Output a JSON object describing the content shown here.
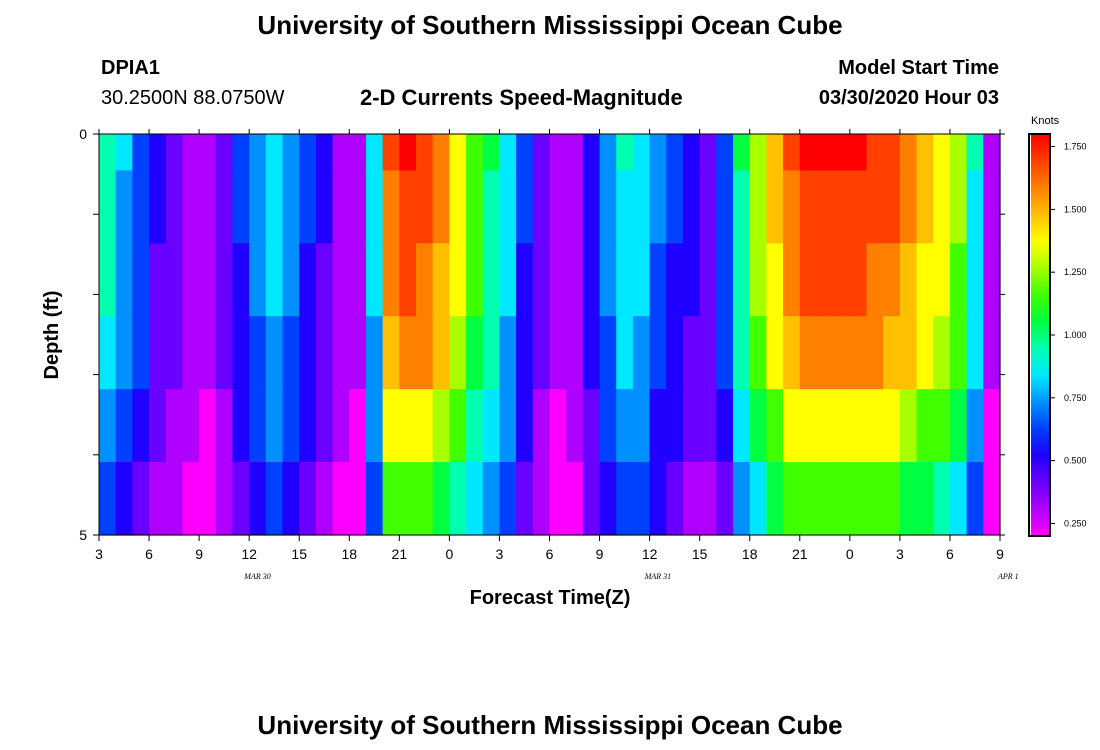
{
  "header": {
    "title": "University of Southern Mississippi Ocean Cube",
    "station_id": "DPIA1",
    "coordinates": "30.2500N 88.0750W",
    "plot_title": "2-D Currents Speed-Magnitude",
    "model_start_label": "Model Start Time",
    "model_start_value": "03/30/2020 Hour 03"
  },
  "footer": {
    "title": "University of Southern Mississippi Ocean Cube"
  },
  "colors": {
    "scale": [
      "#ff00ff",
      "#b000ff",
      "#6a00ff",
      "#2000ff",
      "#0040ff",
      "#0090ff",
      "#00e8ff",
      "#00ffb0",
      "#00ff40",
      "#40ff00",
      "#a8ff00",
      "#ffff00",
      "#ffc000",
      "#ff8000",
      "#ff4000",
      "#ff0000"
    ]
  },
  "chart_data": {
    "type": "heatmap",
    "title": "2-D Currents Speed-Magnitude",
    "xlabel": "Forecast Time(Z)",
    "ylabel": "Depth (ft)",
    "colorbar_label": "Knots",
    "colorbar_range": [
      0.2,
      1.8
    ],
    "colorbar_ticks": [
      "0.250",
      "0.500",
      "0.750",
      "1.000",
      "1.250",
      "1.500",
      "1.750"
    ],
    "ylim": [
      0,
      5
    ],
    "y_tick_labels": [
      "0",
      "5"
    ],
    "x_tick_labels": [
      "3",
      "6",
      "9",
      "12",
      "15",
      "18",
      "21",
      "0",
      "3",
      "6",
      "9",
      "12",
      "15",
      "18",
      "21",
      "0",
      "3",
      "6",
      "9"
    ],
    "day_labels": [
      {
        "text": "MAR 30",
        "hour_index": 9.5
      },
      {
        "text": "MAR 31",
        "hour_index": 33.5
      },
      {
        "text": "APR 1",
        "hour_index": 54.5
      }
    ],
    "hours": 54,
    "depth_layers": 5,
    "surface_speed_knots": [
      0.95,
      0.8,
      0.65,
      0.48,
      0.42,
      0.35,
      0.3,
      0.4,
      0.6,
      0.75,
      0.85,
      0.75,
      0.6,
      0.48,
      0.35,
      0.3,
      0.85,
      1.65,
      1.75,
      1.72,
      1.6,
      1.4,
      1.2,
      1.0,
      0.85,
      0.6,
      0.4,
      0.3,
      0.35,
      0.55,
      0.75,
      0.9,
      0.85,
      0.7,
      0.6,
      0.5,
      0.45,
      0.65,
      1.0,
      1.3,
      1.5,
      1.65,
      1.75,
      1.75,
      1.75,
      1.75,
      1.72,
      1.7,
      1.6,
      1.5,
      1.4,
      1.25,
      0.9,
      0.3
    ],
    "depth_speed_factors": [
      1.0,
      0.98,
      0.95,
      0.9,
      0.8,
      0.68
    ]
  }
}
